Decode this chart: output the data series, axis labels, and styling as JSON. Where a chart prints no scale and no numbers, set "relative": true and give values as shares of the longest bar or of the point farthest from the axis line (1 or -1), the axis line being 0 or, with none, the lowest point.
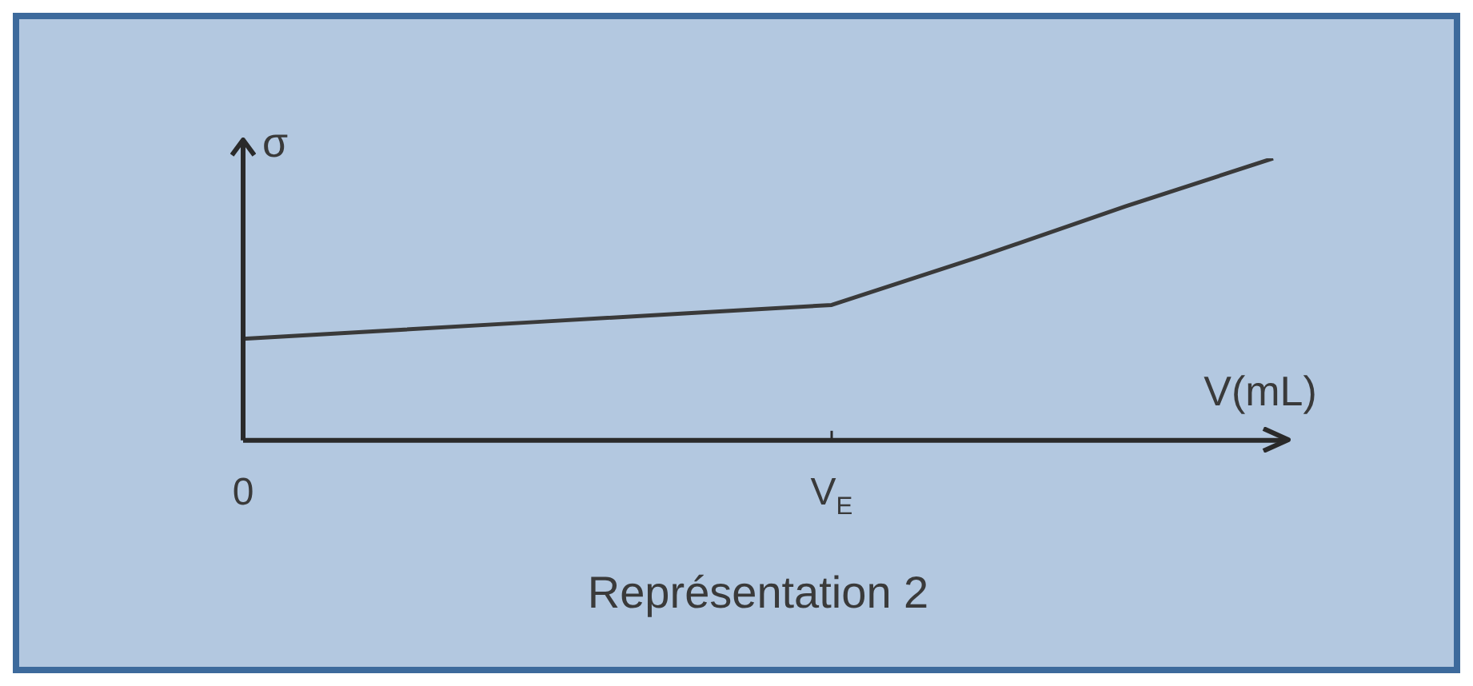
{
  "chart_data": {
    "type": "line",
    "title": "Représentation 2",
    "xlabel": "V(mL)",
    "ylabel": "σ",
    "relative": true,
    "categories": [
      "0",
      null,
      null,
      null,
      "V$_{E}$",
      null,
      null,
      null
    ],
    "series": [
      {
        "color": "#3a3a3a",
        "values": [
          0.36,
          0.39,
          0.42,
          0.45,
          0.48,
          0.65,
          0.83,
          1
        ]
      }
    ],
    "grid": false,
    "legend": false,
    "marker": "none",
    "line_style": "solid"
  }
}
